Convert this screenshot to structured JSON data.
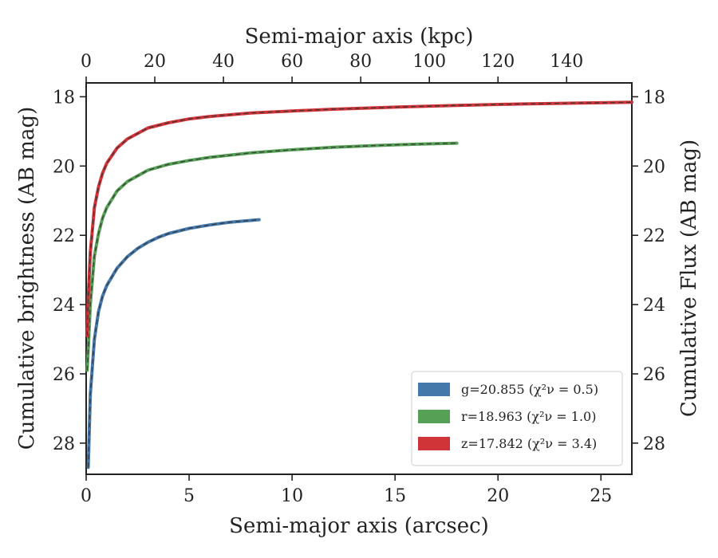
{
  "chart_data": {
    "type": "line",
    "xlabel_bottom": "Semi-major axis (arcsec)",
    "xlabel_top": "Semi-major axis (kpc)",
    "ylabel_left": "Cumulative brightness (AB mag)",
    "ylabel_right": "Cumulative Flux (AB mag)",
    "xlim": [
      0,
      26.5
    ],
    "ylim": [
      28.9,
      17.6
    ],
    "y_inverted": true,
    "x_top_lim_kpc": [
      0,
      159
    ],
    "x_ticks": [
      "0",
      "5",
      "10",
      "15",
      "20",
      "25"
    ],
    "x_top_ticks": [
      "0",
      "20",
      "40",
      "60",
      "80",
      "100",
      "120",
      "140"
    ],
    "y_ticks": [
      "18",
      "20",
      "22",
      "24",
      "26",
      "28"
    ],
    "legend_position": "lower-right",
    "grid": false,
    "series": [
      {
        "name": "g=20.855 (χ²ν = 0.5)",
        "color": "#4477aa",
        "x": [
          0.1,
          0.2,
          0.4,
          0.6,
          0.8,
          1.0,
          1.5,
          2.0,
          2.5,
          3.0,
          3.5,
          4.0,
          5.0,
          6.0,
          7.0,
          8.0,
          8.4
        ],
        "y": [
          28.7,
          26.6,
          25.0,
          24.2,
          23.75,
          23.45,
          22.95,
          22.62,
          22.38,
          22.2,
          22.06,
          21.95,
          21.8,
          21.7,
          21.62,
          21.57,
          21.55
        ]
      },
      {
        "name": "r=18.963 (χ²ν = 1.0)",
        "color": "#55a055",
        "x": [
          0.05,
          0.1,
          0.2,
          0.4,
          0.6,
          0.8,
          1.0,
          1.5,
          2.0,
          3.0,
          4.0,
          5.0,
          6.0,
          8.0,
          10.0,
          12.0,
          14.0,
          16.0,
          18.0
        ],
        "y": [
          25.9,
          25.3,
          24.0,
          22.6,
          21.95,
          21.5,
          21.2,
          20.72,
          20.45,
          20.12,
          19.95,
          19.84,
          19.75,
          19.62,
          19.53,
          19.46,
          19.41,
          19.37,
          19.34
        ]
      },
      {
        "name": "z=17.842 (χ²ν = 3.4)",
        "color": "#d13438",
        "x": [
          0.05,
          0.1,
          0.2,
          0.4,
          0.6,
          0.8,
          1.0,
          1.5,
          2.0,
          3.0,
          4.0,
          5.0,
          6.0,
          8.0,
          10.0,
          12.0,
          15.0,
          18.0,
          21.0,
          24.0,
          26.5
        ],
        "y": [
          24.9,
          23.8,
          22.5,
          21.2,
          20.6,
          20.2,
          19.92,
          19.48,
          19.22,
          18.9,
          18.75,
          18.64,
          18.57,
          18.47,
          18.41,
          18.36,
          18.3,
          18.25,
          18.21,
          18.18,
          18.16
        ]
      }
    ]
  }
}
